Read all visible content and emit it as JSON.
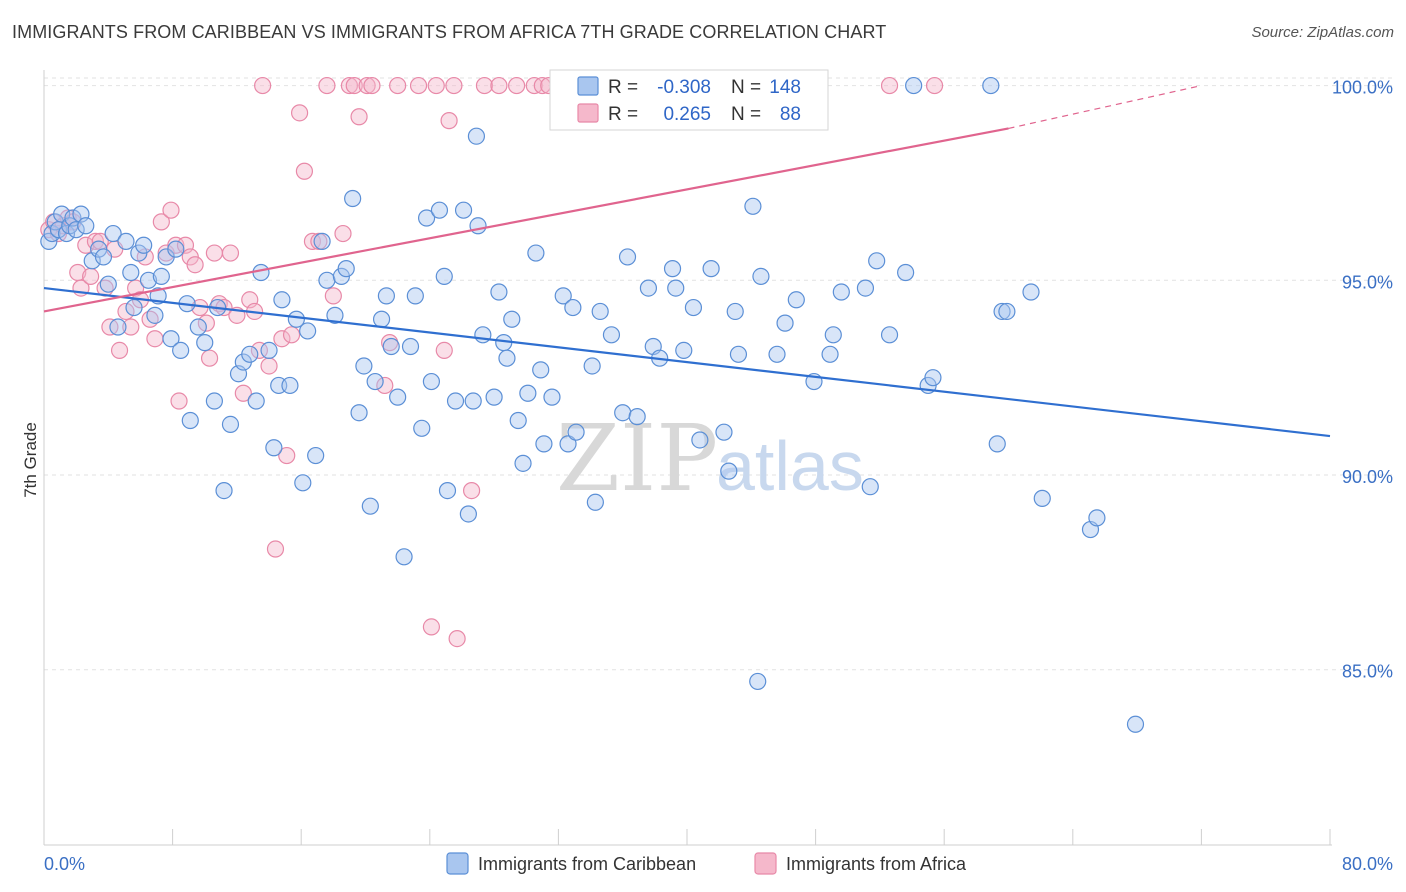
{
  "header": {
    "title": "IMMIGRANTS FROM CARIBBEAN VS IMMIGRANTS FROM AFRICA 7TH GRADE CORRELATION CHART",
    "source": "Source: ZipAtlas.com"
  },
  "watermark": {
    "zip": "ZIP",
    "atlas": "atlas"
  },
  "legend_box": {
    "r_label": "R =",
    "n_label": "N =",
    "series": [
      {
        "r": "-0.308",
        "n": "148"
      },
      {
        "r": "0.265",
        "n": "88"
      }
    ]
  },
  "colors": {
    "blue_fill": "#a9c6ef",
    "blue_stroke": "#5b8fd6",
    "blue_line": "#2f6fd0",
    "pink_fill": "#f5b8cb",
    "pink_stroke": "#e889a8",
    "pink_line": "#e0648e",
    "tick_label": "#3a6fc4",
    "grid": "#dddddd"
  },
  "chart_data": {
    "type": "scatter",
    "title": "IMMIGRANTS FROM CARIBBEAN VS IMMIGRANTS FROM AFRICA 7TH GRADE CORRELATION CHART",
    "xlabel": "",
    "ylabel": "7th Grade",
    "xlim": [
      0,
      80
    ],
    "ylim": [
      80.5,
      100.4
    ],
    "x_tick_labels": [
      "0.0%",
      "80.0%"
    ],
    "y_ticks": [
      85,
      90,
      95,
      100
    ],
    "y_tick_labels": [
      "85.0%",
      "90.0%",
      "95.0%",
      "100.0%"
    ],
    "grid": true,
    "legend_position": "top-center",
    "series": [
      {
        "name": "Immigrants from Caribbean",
        "color": "#5b8fd6",
        "R": -0.308,
        "N": 148,
        "trend": {
          "x": [
            0,
            80
          ],
          "y": [
            94.8,
            91.0
          ]
        },
        "points": [
          [
            0.3,
            96.0
          ],
          [
            0.5,
            96.2
          ],
          [
            0.7,
            96.5
          ],
          [
            0.9,
            96.3
          ],
          [
            1.1,
            96.7
          ],
          [
            1.4,
            96.2
          ],
          [
            1.6,
            96.4
          ],
          [
            1.8,
            96.6
          ],
          [
            2.0,
            96.3
          ],
          [
            2.3,
            96.7
          ],
          [
            2.6,
            96.4
          ],
          [
            3.0,
            95.5
          ],
          [
            3.4,
            95.8
          ],
          [
            3.7,
            95.6
          ],
          [
            4.0,
            94.9
          ],
          [
            4.3,
            96.2
          ],
          [
            4.6,
            93.8
          ],
          [
            5.1,
            96.0
          ],
          [
            5.4,
            95.2
          ],
          [
            5.6,
            94.3
          ],
          [
            5.9,
            95.7
          ],
          [
            6.2,
            95.9
          ],
          [
            6.5,
            95.0
          ],
          [
            6.9,
            94.1
          ],
          [
            7.1,
            94.6
          ],
          [
            7.3,
            95.1
          ],
          [
            7.6,
            95.6
          ],
          [
            7.9,
            93.5
          ],
          [
            8.2,
            95.8
          ],
          [
            8.5,
            93.2
          ],
          [
            8.9,
            94.4
          ],
          [
            9.1,
            91.4
          ],
          [
            9.6,
            93.8
          ],
          [
            10.0,
            93.4
          ],
          [
            10.6,
            91.9
          ],
          [
            10.8,
            94.3
          ],
          [
            11.2,
            89.6
          ],
          [
            11.6,
            91.3
          ],
          [
            12.1,
            92.6
          ],
          [
            12.4,
            92.9
          ],
          [
            12.8,
            93.1
          ],
          [
            13.2,
            91.9
          ],
          [
            13.5,
            95.2
          ],
          [
            14.0,
            93.2
          ],
          [
            14.3,
            90.7
          ],
          [
            14.6,
            92.3
          ],
          [
            14.8,
            94.5
          ],
          [
            15.3,
            92.3
          ],
          [
            15.7,
            94.0
          ],
          [
            16.1,
            89.8
          ],
          [
            16.4,
            93.7
          ],
          [
            16.9,
            90.5
          ],
          [
            17.3,
            96.0
          ],
          [
            17.6,
            95.0
          ],
          [
            18.1,
            94.1
          ],
          [
            18.5,
            95.1
          ],
          [
            18.8,
            95.3
          ],
          [
            19.2,
            97.1
          ],
          [
            19.6,
            91.6
          ],
          [
            19.9,
            92.8
          ],
          [
            20.3,
            89.2
          ],
          [
            20.6,
            92.4
          ],
          [
            21.0,
            94.0
          ],
          [
            21.3,
            94.6
          ],
          [
            21.6,
            93.3
          ],
          [
            22.0,
            92.0
          ],
          [
            22.4,
            87.9
          ],
          [
            22.8,
            93.3
          ],
          [
            23.1,
            94.6
          ],
          [
            23.5,
            91.2
          ],
          [
            23.8,
            96.6
          ],
          [
            24.1,
            92.4
          ],
          [
            24.6,
            96.8
          ],
          [
            24.9,
            95.1
          ],
          [
            25.1,
            89.6
          ],
          [
            25.6,
            91.9
          ],
          [
            26.1,
            96.8
          ],
          [
            26.4,
            89.0
          ],
          [
            26.7,
            91.9
          ],
          [
            27.0,
            96.4
          ],
          [
            27.3,
            93.6
          ],
          [
            28.0,
            92.0
          ],
          [
            28.3,
            94.7
          ],
          [
            28.6,
            93.4
          ],
          [
            28.8,
            93.0
          ],
          [
            29.1,
            94.0
          ],
          [
            29.5,
            91.4
          ],
          [
            29.8,
            90.3
          ],
          [
            30.1,
            92.1
          ],
          [
            30.6,
            95.7
          ],
          [
            30.9,
            92.7
          ],
          [
            31.1,
            90.8
          ],
          [
            31.6,
            92.0
          ],
          [
            32.3,
            94.6
          ],
          [
            32.6,
            90.8
          ],
          [
            32.9,
            94.3
          ],
          [
            33.1,
            91.1
          ],
          [
            34.1,
            92.8
          ],
          [
            34.3,
            89.3
          ],
          [
            34.6,
            94.2
          ],
          [
            35.3,
            93.6
          ],
          [
            36.0,
            91.6
          ],
          [
            36.3,
            95.6
          ],
          [
            36.9,
            91.5
          ],
          [
            37.6,
            94.8
          ],
          [
            37.9,
            93.3
          ],
          [
            38.3,
            93.0
          ],
          [
            39.1,
            95.3
          ],
          [
            39.3,
            94.8
          ],
          [
            39.8,
            93.2
          ],
          [
            40.4,
            94.3
          ],
          [
            40.8,
            90.9
          ],
          [
            41.5,
            95.3
          ],
          [
            42.3,
            91.1
          ],
          [
            42.6,
            90.1
          ],
          [
            43.0,
            94.2
          ],
          [
            43.2,
            93.1
          ],
          [
            44.1,
            96.9
          ],
          [
            44.4,
            84.7
          ],
          [
            44.6,
            95.1
          ],
          [
            45.6,
            93.1
          ],
          [
            46.1,
            93.9
          ],
          [
            46.8,
            94.5
          ],
          [
            47.9,
            92.4
          ],
          [
            48.9,
            93.1
          ],
          [
            49.1,
            93.6
          ],
          [
            49.6,
            94.7
          ],
          [
            51.1,
            94.8
          ],
          [
            51.4,
            89.7
          ],
          [
            51.8,
            95.5
          ],
          [
            52.6,
            93.6
          ],
          [
            53.6,
            95.2
          ],
          [
            54.1,
            100.0
          ],
          [
            55.0,
            92.3
          ],
          [
            55.3,
            92.5
          ],
          [
            58.9,
            100.0
          ],
          [
            59.6,
            94.2
          ],
          [
            59.9,
            94.2
          ],
          [
            59.3,
            90.8
          ],
          [
            61.4,
            94.7
          ],
          [
            62.1,
            89.4
          ],
          [
            65.1,
            88.6
          ],
          [
            65.5,
            88.9
          ],
          [
            67.9,
            83.6
          ],
          [
            26.9,
            98.7
          ]
        ]
      },
      {
        "name": "Immigrants from Africa",
        "color": "#e889a8",
        "R": 0.265,
        "N": 88,
        "trend": {
          "x": [
            0,
            60
          ],
          "y": [
            94.2,
            98.9
          ]
        },
        "trend_dashed": {
          "x": [
            60,
            72
          ],
          "y": [
            98.9,
            100.0
          ]
        },
        "points": [
          [
            0.3,
            96.3
          ],
          [
            0.6,
            96.5
          ],
          [
            0.9,
            96.2
          ],
          [
            1.2,
            96.4
          ],
          [
            1.5,
            96.6
          ],
          [
            1.8,
            96.5
          ],
          [
            2.1,
            95.2
          ],
          [
            2.3,
            94.8
          ],
          [
            2.6,
            95.9
          ],
          [
            2.9,
            95.1
          ],
          [
            3.2,
            96.0
          ],
          [
            3.5,
            96.0
          ],
          [
            3.8,
            94.8
          ],
          [
            4.1,
            93.8
          ],
          [
            4.4,
            95.8
          ],
          [
            4.7,
            93.2
          ],
          [
            5.1,
            94.2
          ],
          [
            5.4,
            93.8
          ],
          [
            5.7,
            94.8
          ],
          [
            6.0,
            94.5
          ],
          [
            6.3,
            95.6
          ],
          [
            6.6,
            94.0
          ],
          [
            6.9,
            93.5
          ],
          [
            7.3,
            96.5
          ],
          [
            7.6,
            95.7
          ],
          [
            7.9,
            96.8
          ],
          [
            8.2,
            95.9
          ],
          [
            8.4,
            91.9
          ],
          [
            8.8,
            95.9
          ],
          [
            9.1,
            95.6
          ],
          [
            9.4,
            95.4
          ],
          [
            9.7,
            94.3
          ],
          [
            10.1,
            93.9
          ],
          [
            10.3,
            93.0
          ],
          [
            10.6,
            95.7
          ],
          [
            10.9,
            94.4
          ],
          [
            11.2,
            94.3
          ],
          [
            11.6,
            95.7
          ],
          [
            12.0,
            94.1
          ],
          [
            12.4,
            92.1
          ],
          [
            12.8,
            94.5
          ],
          [
            13.1,
            94.2
          ],
          [
            13.4,
            93.2
          ],
          [
            13.6,
            100.0
          ],
          [
            14.0,
            92.8
          ],
          [
            14.4,
            88.1
          ],
          [
            14.8,
            93.5
          ],
          [
            15.1,
            90.5
          ],
          [
            15.4,
            93.6
          ],
          [
            15.9,
            99.3
          ],
          [
            16.2,
            97.8
          ],
          [
            16.7,
            96.0
          ],
          [
            17.1,
            96.0
          ],
          [
            17.6,
            100.0
          ],
          [
            18.0,
            94.6
          ],
          [
            18.6,
            96.2
          ],
          [
            19.0,
            100.0
          ],
          [
            19.3,
            100.0
          ],
          [
            19.6,
            99.2
          ],
          [
            20.1,
            100.0
          ],
          [
            20.4,
            100.0
          ],
          [
            21.2,
            92.3
          ],
          [
            21.5,
            93.4
          ],
          [
            22.0,
            100.0
          ],
          [
            23.3,
            100.0
          ],
          [
            24.1,
            86.1
          ],
          [
            24.4,
            100.0
          ],
          [
            24.9,
            93.2
          ],
          [
            25.2,
            99.1
          ],
          [
            25.5,
            100.0
          ],
          [
            25.7,
            85.8
          ],
          [
            26.6,
            89.6
          ],
          [
            27.4,
            100.0
          ],
          [
            28.3,
            100.0
          ],
          [
            29.4,
            100.0
          ],
          [
            30.5,
            100.0
          ],
          [
            31.0,
            100.0
          ],
          [
            31.4,
            100.0
          ],
          [
            32.2,
            100.0
          ],
          [
            32.9,
            100.0
          ],
          [
            34.0,
            100.0
          ],
          [
            35.3,
            100.0
          ],
          [
            36.5,
            100.0
          ],
          [
            37.7,
            100.0
          ],
          [
            38.9,
            100.0
          ],
          [
            40.4,
            100.0
          ],
          [
            52.6,
            100.0
          ],
          [
            55.4,
            100.0
          ]
        ]
      }
    ]
  },
  "bottom_legend": [
    {
      "label": "Immigrants from Caribbean"
    },
    {
      "label": "Immigrants from Africa"
    }
  ],
  "axes": {
    "x_min_label": "0.0%",
    "x_max_label": "80.0%",
    "y_title": "7th Grade"
  }
}
